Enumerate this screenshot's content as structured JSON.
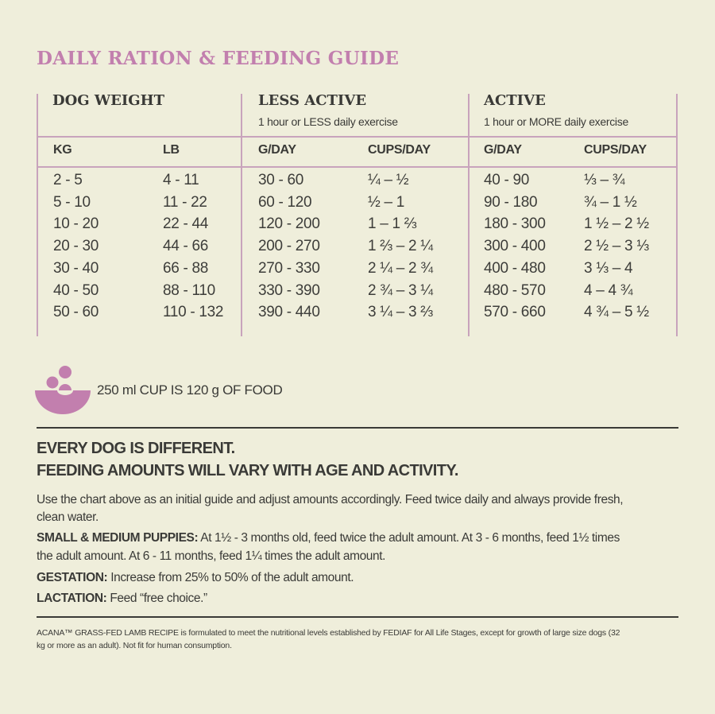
{
  "title": "DAILY RATION & FEEDING GUIDE",
  "colors": {
    "accent": "#c27fae",
    "background": "#efeedb",
    "text": "#3a3a37"
  },
  "table": {
    "groups": [
      {
        "label": "DOG WEIGHT",
        "subtitle": ""
      },
      {
        "label": "LESS ACTIVE",
        "subtitle": "1 hour or LESS daily exercise"
      },
      {
        "label": "ACTIVE",
        "subtitle": "1 hour or MORE daily exercise"
      }
    ],
    "columns": [
      "KG",
      "LB",
      "G/DAY",
      "CUPS/DAY",
      "G/DAY",
      "CUPS/DAY"
    ],
    "rows": [
      [
        "2 - 5",
        "4 - 11",
        "30 - 60",
        "¼ – ½",
        "40 - 90",
        "⅓ – ¾"
      ],
      [
        "5 - 10",
        "11 - 22",
        "60 - 120",
        "½ – 1",
        "90 - 180",
        "¾ – 1 ½"
      ],
      [
        "10 - 20",
        "22 - 44",
        "120 - 200",
        "1 – 1 ⅔",
        "180 - 300",
        "1 ½ – 2 ½"
      ],
      [
        "20 - 30",
        "44 - 66",
        "200 - 270",
        "1 ⅔ – 2 ¼",
        "300 - 400",
        "2 ½ – 3 ⅓"
      ],
      [
        "30 - 40",
        "66 - 88",
        "270 - 330",
        "2 ¼ – 2 ¾",
        "400 - 480",
        "3 ⅓ – 4"
      ],
      [
        "40 - 50",
        "88 - 110",
        "330 - 390",
        "2 ¾ – 3 ¼",
        "480 - 570",
        "4 – 4 ¾"
      ],
      [
        "50 - 60",
        "110 - 132",
        "390 - 440",
        "3 ¼ – 3 ⅔",
        "570 - 660",
        "4 ¾ – 5 ½"
      ]
    ]
  },
  "cup_note": {
    "icon": "food-bowl-icon",
    "text": "250 ml CUP IS 120 g OF FOOD"
  },
  "headline": [
    "EVERY DOG IS DIFFERENT.",
    "FEEDING AMOUNTS WILL VARY WITH AGE AND ACTIVITY."
  ],
  "paragraphs": {
    "intro_1": "Use the chart above as an initial guide and adjust amounts accordingly. Feed twice daily and always provide fresh,",
    "intro_2": "clean water.",
    "puppies_label": "SMALL & MEDIUM PUPPIES:",
    "puppies_1": " At 1½ - 3 months old, feed twice the adult amount. At 3 - 6 months, feed 1½ times",
    "puppies_2": "the adult amount. At 6 - 11 months, feed 1¼ times the adult amount.",
    "gestation_label": "GESTATION:",
    "gestation_text": " Increase from 25% to 50% of the adult amount.",
    "lactation_label": "LACTATION:",
    "lactation_text": " Feed “free choice.”"
  },
  "footnote": [
    "ACANA™ GRASS-FED LAMB RECIPE is formulated to meet the nutritional levels established by FEDIAF for All Life Stages, except for growth of large size dogs (32",
    "kg or more as an adult). Not fit for human consumption."
  ]
}
